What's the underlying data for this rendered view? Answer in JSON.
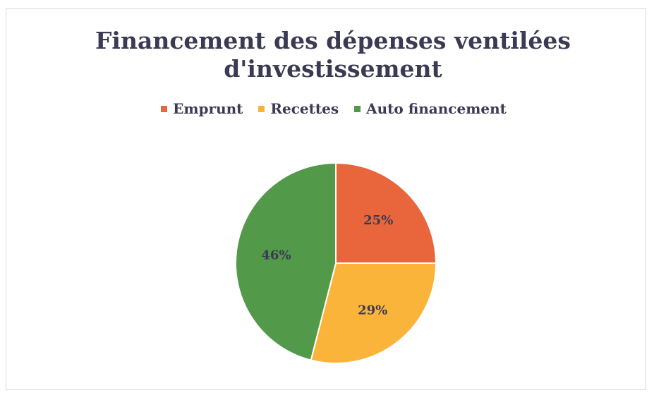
{
  "chart_data": {
    "type": "pie",
    "title": "Financement des dépenses ventilées d'investissement",
    "categories": [
      "Emprunt",
      "Recettes",
      "Auto financement"
    ],
    "values": [
      25,
      29,
      46
    ],
    "value_labels": [
      "25%",
      "29%",
      "46%"
    ],
    "colors": [
      "#e9653c",
      "#fbb43a",
      "#52994a"
    ],
    "legend": "top"
  }
}
